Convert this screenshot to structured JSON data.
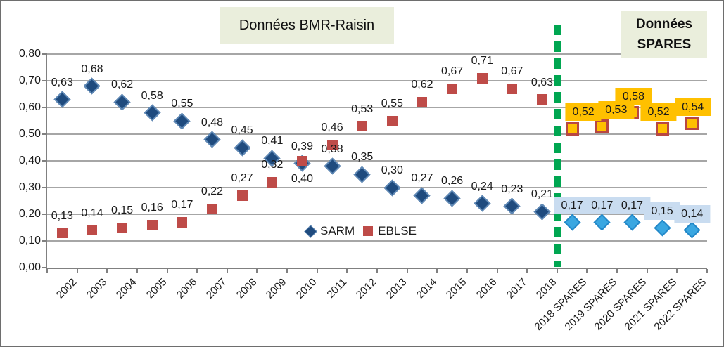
{
  "titles": {
    "bmr": "Données BMR-Raisin",
    "spares_line1": "Données",
    "spares_line2": "SPARES",
    "box_bg": "#EAEEDC"
  },
  "legend": {
    "items": [
      {
        "label": "SARM",
        "marker": "diamond-icon",
        "color": "#1F4B7E"
      },
      {
        "label": "EBLSE",
        "marker": "square-icon",
        "color": "#BE4B48"
      }
    ],
    "position": "inside-bottom-center"
  },
  "colors": {
    "grid": "#A6A6A6",
    "axis": "#808080",
    "text": "#1A1A1A",
    "divider_green": "#00A651",
    "sarm_bmr_fill": "#1F4B7E",
    "sarm_bmr_border": "#5E88B5",
    "eblse_bmr_fill": "#BE4B48",
    "sarm_spares_fill": "#3AA7E1",
    "sarm_spares_border": "#2388C8",
    "sarm_spares_label_bg": "#C9DCF0",
    "eblse_spares_fill": "#FFC000",
    "eblse_spares_border": "#B84742",
    "eblse_spares_label_bg": "#FFC000"
  },
  "chart_data": {
    "type": "scatter",
    "title": "",
    "xlabel": "",
    "ylabel": "",
    "ylim": [
      0,
      0.8
    ],
    "yticks": [
      0,
      0.1,
      0.2,
      0.3,
      0.4,
      0.5,
      0.6,
      0.7,
      0.8
    ],
    "decimal_separator": ",",
    "grid": true,
    "divider_after_category": "2018",
    "categories": [
      "2002",
      "2003",
      "2004",
      "2005",
      "2006",
      "2007",
      "2008",
      "2009",
      "2010",
      "2011",
      "2012",
      "2013",
      "2014",
      "2015",
      "2016",
      "2017",
      "2018",
      "2018 SPARES",
      "2019 SPARES",
      "2020 SPARES",
      "2021 SPARES",
      "2022 SPARES"
    ],
    "series": [
      {
        "name": "SARM",
        "segment": "BMR-Raisin",
        "marker": "diamond",
        "fill_key": "sarm_bmr_fill",
        "border_key": "sarm_bmr_border",
        "start_index": 0,
        "values": [
          0.63,
          0.68,
          0.62,
          0.58,
          0.55,
          0.48,
          0.45,
          0.41,
          0.39,
          0.38,
          0.35,
          0.3,
          0.27,
          0.26,
          0.24,
          0.23,
          0.21
        ]
      },
      {
        "name": "EBLSE",
        "segment": "BMR-Raisin",
        "marker": "square",
        "fill_key": "eblse_bmr_fill",
        "start_index": 0,
        "values": [
          0.13,
          0.14,
          0.15,
          0.16,
          0.17,
          0.22,
          0.27,
          0.32,
          0.4,
          0.46,
          0.53,
          0.55,
          0.62,
          0.67,
          0.71,
          0.67,
          0.63
        ],
        "label_below_categories": [
          "2010"
        ]
      },
      {
        "name": "SARM",
        "segment": "SPARES",
        "marker": "diamond",
        "fill_key": "sarm_spares_fill",
        "border_key": "sarm_spares_border",
        "label_bg_key": "sarm_spares_label_bg",
        "start_index": 17,
        "values": [
          0.17,
          0.17,
          0.17,
          0.15,
          0.14
        ],
        "label_dx": [
          0,
          0,
          0,
          0,
          0
        ]
      },
      {
        "name": "EBLSE",
        "segment": "SPARES",
        "marker": "square",
        "fill_key": "eblse_spares_fill",
        "border_key": "eblse_spares_border",
        "label_bg_key": "eblse_spares_label_bg",
        "start_index": 17,
        "values": [
          0.52,
          0.53,
          0.58,
          0.52,
          0.54
        ],
        "label_dx": [
          16,
          20,
          2,
          -5,
          1
        ]
      }
    ]
  }
}
